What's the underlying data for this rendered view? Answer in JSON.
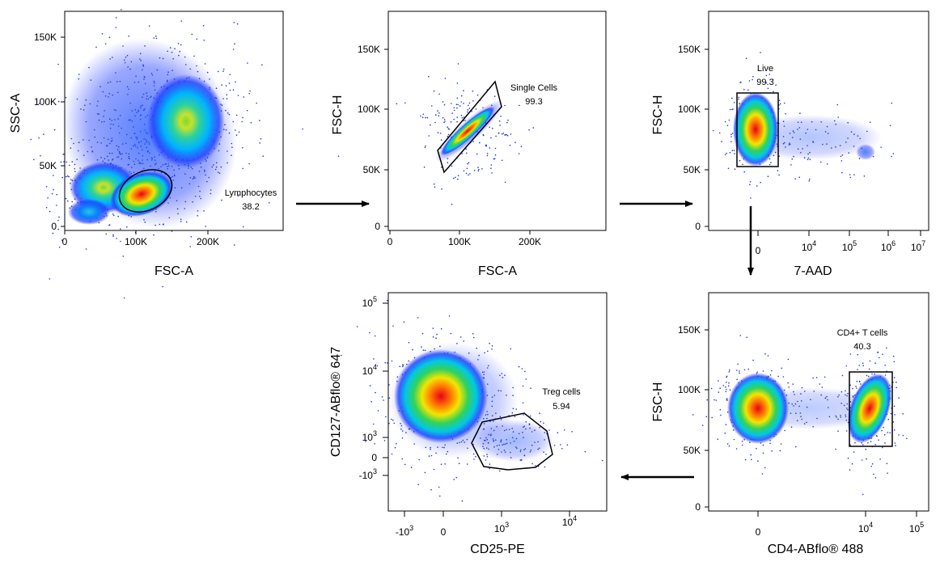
{
  "figure_title": "",
  "chart_data": [
    {
      "type": "scatter",
      "name": "",
      "xlabel": "FSC-A",
      "ylabel": "SSC-A",
      "xticks": [
        "0",
        "100K",
        "200K"
      ],
      "yticks": [
        "0",
        "50K",
        "100K",
        "150K"
      ],
      "xlim": [
        0,
        300000
      ],
      "ylim": [
        0,
        170000
      ],
      "gate": {
        "name": "Lymphocytes",
        "percent": "38.2",
        "shape": "ellipse"
      },
      "populations": [
        {
          "x": 110000,
          "y": 25000,
          "level": "high"
        },
        {
          "x": 170000,
          "y": 78000,
          "level": "medium"
        },
        {
          "x": 45000,
          "y": 30000,
          "level": "medium"
        }
      ]
    },
    {
      "type": "scatter",
      "xlabel": "FSC-A",
      "ylabel": "FSC-H",
      "xticks": [
        "0",
        "100K",
        "200K"
      ],
      "yticks": [
        "0",
        "50K",
        "100K",
        "150K"
      ],
      "xlim": [
        0,
        300000
      ],
      "ylim": [
        0,
        185000
      ],
      "gate": {
        "name": "Single Cells",
        "percent": "99.3",
        "shape": "polygon"
      },
      "populations": [
        {
          "x": 112000,
          "y": 88000,
          "level": "high"
        }
      ]
    },
    {
      "type": "scatter",
      "xlabel": "7-AAD",
      "ylabel": "FSC-H",
      "xscale": "biexponential",
      "xticks": [
        "0",
        "10^4",
        "10^5",
        "10^6",
        "10^7"
      ],
      "yticks": [
        "0",
        "50K",
        "100K",
        "150K"
      ],
      "ylim": [
        0,
        185000
      ],
      "gate": {
        "name": "Live",
        "percent": "99.3",
        "shape": "rectangle"
      },
      "populations": [
        {
          "x": "0",
          "y": 85000,
          "level": "high"
        }
      ]
    },
    {
      "type": "scatter",
      "xlabel": "CD4-ABflo® 488",
      "ylabel": "FSC-H",
      "xscale": "biexponential",
      "xticks": [
        "0",
        "10^4",
        "10^5"
      ],
      "yticks": [
        "0",
        "50K",
        "100K",
        "150K"
      ],
      "ylim": [
        0,
        185000
      ],
      "gate": {
        "name": "CD4+ T cells",
        "percent": "40.3",
        "shape": "rectangle"
      },
      "populations": [
        {
          "x": "0",
          "y": 85000,
          "level": "high"
        },
        {
          "x": "2x10^4",
          "y": 85000,
          "level": "high"
        }
      ]
    },
    {
      "type": "scatter",
      "xlabel": "CD25-PE",
      "ylabel": "CD127-ABflo® 647",
      "xscale": "biexponential",
      "yscale": "biexponential",
      "xticks": [
        "-10^3",
        "0",
        "10^3",
        "10^4"
      ],
      "yticks": [
        "-10^3",
        "0",
        "10^3",
        "10^4",
        "10^5"
      ],
      "gate": {
        "name": "Treg cells",
        "percent": "5.94",
        "shape": "polygon"
      },
      "populations": [
        {
          "x": "0",
          "y": "4x10^3",
          "level": "high"
        },
        {
          "x": "10^3",
          "y": "10^3",
          "level": "low"
        }
      ]
    }
  ]
}
